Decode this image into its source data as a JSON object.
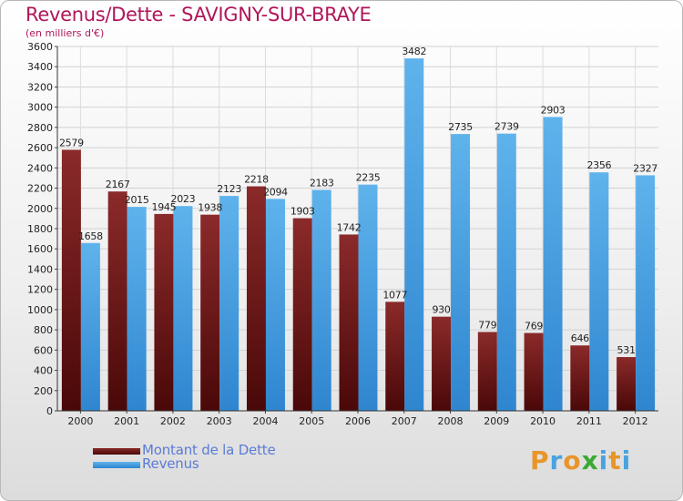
{
  "colors": {
    "dette_top": "#8b2a2a",
    "dette_bottom": "#4a0808",
    "revenus_top": "#5fb3ec",
    "revenus_bottom": "#2f86cf",
    "title": "#b0165a",
    "legend_text": "#5b7bd6"
  },
  "chart_data": {
    "type": "bar",
    "title": "Revenus/Dette - SAVIGNY-SUR-BRAYE",
    "subtitle": "(en milliers d'€)",
    "xlabel": "",
    "ylabel": "",
    "ylim": [
      0,
      3600
    ],
    "yticks": [
      "0",
      "200",
      "400",
      "600",
      "800",
      "1000",
      "1200",
      "1400",
      "1600",
      "1800",
      "2000",
      "2200",
      "2400",
      "2600",
      "2800",
      "3000",
      "3200",
      "3400",
      "3600"
    ],
    "grid": true,
    "legend_position": "bottom-left",
    "categories": [
      "2000",
      "2001",
      "2002",
      "2003",
      "2004",
      "2005",
      "2006",
      "2007",
      "2008",
      "2009",
      "2010",
      "2011",
      "2012"
    ],
    "series": [
      {
        "name": "Montant de la Dette",
        "values": [
          2579,
          2167,
          1945,
          1938,
          2218,
          1903,
          1742,
          1077,
          930,
          779,
          769,
          646,
          531
        ]
      },
      {
        "name": "Revenus",
        "values": [
          1658,
          2015,
          2023,
          2123,
          2094,
          2183,
          2235,
          3482,
          2735,
          2739,
          2903,
          2356,
          2327
        ]
      }
    ]
  },
  "logo": {
    "letters": [
      "P",
      "r",
      "o",
      "x",
      "i",
      "t",
      "i"
    ],
    "colors": [
      "#e8952a",
      "#4aa3df",
      "#e8952a",
      "#3aaa35",
      "#4aa3df",
      "#e8952a",
      "#4aa3df"
    ]
  }
}
